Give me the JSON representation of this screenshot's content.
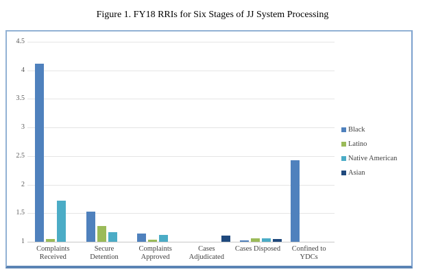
{
  "title": "Figure 1. FY18 RRIs for Six Stages of JJ System Processing",
  "chart_data": {
    "type": "bar",
    "title": "Figure 1. FY18 RRIs for Six Stages of JJ System Processing",
    "categories": [
      "Complaints Received",
      "Secure Detention",
      "Complaints Approved",
      "Cases Adjudicated",
      "Cases Disposed",
      "Confined to YDCs"
    ],
    "category_labels": [
      "Complaints\nReceived",
      "Secure\nDetention",
      "Complaints\nApproved",
      "Cases\nAdjudicated",
      "Cases Disposed",
      "Confined to\nYDCs"
    ],
    "series": [
      {
        "name": "Black",
        "color": "#4f81bd",
        "values": [
          4.12,
          1.53,
          1.14,
          null,
          1.02,
          2.43
        ]
      },
      {
        "name": "Latino",
        "color": "#9bbb59",
        "values": [
          1.05,
          1.28,
          1.03,
          null,
          1.06,
          null
        ]
      },
      {
        "name": "Native American",
        "color": "#4bacc6",
        "values": [
          1.72,
          1.17,
          1.12,
          null,
          1.06,
          null
        ]
      },
      {
        "name": "Asian",
        "color": "#1f497d",
        "values": [
          null,
          null,
          null,
          1.11,
          1.05,
          null
        ]
      }
    ],
    "xlabel": "",
    "ylabel": "",
    "ylim": [
      1,
      4.5
    ],
    "yticks": [
      1,
      1.5,
      2,
      2.5,
      3,
      3.5,
      4,
      4.5
    ],
    "ytick_labels": [
      "1",
      "1.5",
      "2",
      "2.5",
      "3",
      "3.5",
      "4",
      "4.5"
    ],
    "grid": true,
    "legend_position": "right"
  }
}
